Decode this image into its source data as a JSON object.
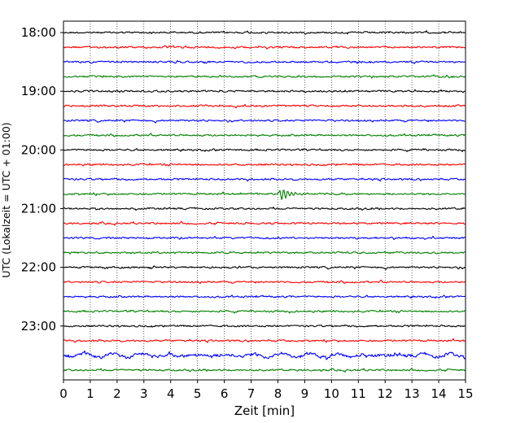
{
  "chart_data": {
    "type": "line",
    "title": "",
    "xlabel": "Zeit  [min]",
    "ylabel": "UTC (Lokalzeit = UTC + 01:00)",
    "xlim": [
      0,
      15
    ],
    "x_ticks": [
      "0",
      "1",
      "2",
      "3",
      "4",
      "5",
      "6",
      "7",
      "8",
      "9",
      "10",
      "11",
      "12",
      "13",
      "14",
      "15"
    ],
    "y_ticks": [
      "18:00",
      "19:00",
      "20:00",
      "21:00",
      "22:00",
      "23:00"
    ],
    "grid": "vertical dotted",
    "trace_colors": [
      "#000000",
      "#ff0000",
      "#0000ff",
      "#008000"
    ],
    "traces": [
      {
        "start": "18:00",
        "color": "#000000"
      },
      {
        "start": "18:15",
        "color": "#ff0000"
      },
      {
        "start": "18:30",
        "color": "#0000ff"
      },
      {
        "start": "18:45",
        "color": "#008000"
      },
      {
        "start": "19:00",
        "color": "#000000"
      },
      {
        "start": "19:15",
        "color": "#ff0000"
      },
      {
        "start": "19:30",
        "color": "#0000ff"
      },
      {
        "start": "19:45",
        "color": "#008000"
      },
      {
        "start": "20:00",
        "color": "#000000"
      },
      {
        "start": "20:15",
        "color": "#ff0000"
      },
      {
        "start": "20:30",
        "color": "#0000ff"
      },
      {
        "start": "20:45",
        "color": "#008000",
        "event_minute": 8.1
      },
      {
        "start": "21:00",
        "color": "#000000"
      },
      {
        "start": "21:15",
        "color": "#ff0000"
      },
      {
        "start": "21:30",
        "color": "#0000ff"
      },
      {
        "start": "21:45",
        "color": "#008000"
      },
      {
        "start": "22:00",
        "color": "#000000"
      },
      {
        "start": "22:15",
        "color": "#ff0000"
      },
      {
        "start": "22:30",
        "color": "#0000ff"
      },
      {
        "start": "22:45",
        "color": "#008000"
      },
      {
        "start": "23:00",
        "color": "#000000"
      },
      {
        "start": "23:15",
        "color": "#ff0000"
      },
      {
        "start": "23:30",
        "color": "#0000ff",
        "noise": "elevated"
      },
      {
        "start": "23:45",
        "color": "#008000"
      }
    ]
  }
}
